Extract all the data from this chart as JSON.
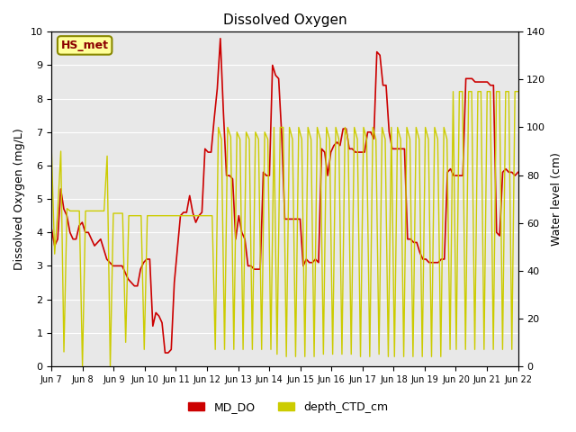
{
  "title": "Dissolved Oxygen",
  "ylabel_left": "Dissolved Oxygen (mg/L)",
  "ylabel_right": "Water level (cm)",
  "ylim_left": [
    0.0,
    10.0
  ],
  "ylim_right": [
    0,
    140
  ],
  "yticks_left": [
    0.0,
    1.0,
    2.0,
    3.0,
    4.0,
    5.0,
    6.0,
    7.0,
    8.0,
    9.0,
    10.0
  ],
  "yticks_right": [
    0,
    20,
    40,
    60,
    80,
    100,
    120,
    140
  ],
  "xlim": [
    0,
    15
  ],
  "xtick_labels": [
    "Jun 7",
    "Jun 8",
    "Jun 9",
    "Jun 10",
    "Jun 11",
    "Jun 12",
    "Jun 13",
    "Jun 14",
    "Jun 15",
    "Jun 16",
    "Jun 17",
    "Jun 18",
    "Jun 19",
    "Jun 20",
    "Jun 21",
    "Jun 22"
  ],
  "xtick_positions": [
    0,
    1,
    2,
    3,
    4,
    5,
    6,
    7,
    8,
    9,
    10,
    11,
    12,
    13,
    14,
    15
  ],
  "legend_labels": [
    "MD_DO",
    "depth_CTD_cm"
  ],
  "legend_colors": [
    "#cc0000",
    "#cccc00"
  ],
  "annotation_text": "HS_met",
  "annotation_color": "#8b0000",
  "annotation_bg": "#ffff99",
  "annotation_border": "#888800",
  "bg_color": "#e8e8e8",
  "grid_color": "#ffffff",
  "line_color_do": "#cc0000",
  "line_color_depth": "#cccc00",
  "md_do": [
    4.1,
    3.6,
    3.8,
    5.3,
    4.7,
    4.5,
    4.0,
    3.8,
    3.8,
    4.2,
    4.3,
    4.0,
    4.0,
    3.8,
    3.6,
    3.7,
    3.8,
    3.5,
    3.2,
    3.1,
    3.0,
    3.0,
    3.0,
    3.0,
    2.8,
    2.6,
    2.5,
    2.4,
    2.4,
    2.9,
    3.1,
    3.2,
    3.2,
    1.2,
    1.6,
    1.5,
    1.3,
    0.4,
    0.4,
    0.5,
    2.5,
    3.5,
    4.5,
    4.6,
    4.6,
    5.1,
    4.6,
    4.3,
    4.5,
    4.6,
    6.5,
    6.4,
    6.4,
    7.4,
    8.3,
    9.8,
    7.6,
    5.7,
    5.7,
    5.6,
    3.8,
    4.5,
    4.0,
    3.8,
    3.0,
    3.0,
    2.9,
    2.9,
    2.9,
    5.8,
    5.7,
    5.7,
    9.0,
    8.7,
    8.6,
    6.9,
    4.4,
    4.4,
    4.4,
    4.4,
    4.4,
    4.4,
    3.0,
    3.2,
    3.1,
    3.1,
    3.2,
    3.1,
    6.5,
    6.4,
    5.7,
    6.4,
    6.6,
    6.7,
    6.6,
    7.1,
    7.1,
    6.5,
    6.5,
    6.4,
    6.4,
    6.4,
    6.4,
    7.0,
    7.0,
    6.8,
    9.4,
    9.3,
    8.4,
    8.4,
    7.0,
    6.5,
    6.5,
    6.5,
    6.5,
    6.5,
    3.8,
    3.8,
    3.7,
    3.7,
    3.4,
    3.2,
    3.2,
    3.1,
    3.1,
    3.1,
    3.1,
    3.2,
    3.2,
    5.8,
    5.9,
    5.7,
    5.7,
    5.7,
    5.7,
    8.6,
    8.6,
    8.6,
    8.5,
    8.5,
    8.5,
    8.5,
    8.5,
    8.4,
    8.4,
    4.0,
    3.9,
    5.8,
    5.9,
    5.8,
    5.8,
    5.7,
    5.8
  ],
  "depth_ctd": [
    90,
    47,
    65,
    90,
    6,
    66,
    65,
    65,
    65,
    65,
    0,
    65,
    65,
    65,
    65,
    65,
    65,
    65,
    88,
    0,
    64,
    64,
    64,
    64,
    10,
    63,
    63,
    63,
    63,
    63,
    7,
    63,
    63,
    63,
    63,
    63,
    63,
    63,
    63,
    63,
    63,
    63,
    63,
    63,
    63,
    63,
    63,
    63,
    63,
    63,
    63,
    63,
    63,
    7,
    100,
    95,
    7,
    100,
    96,
    7,
    98,
    95,
    7,
    98,
    95,
    7,
    98,
    95,
    7,
    98,
    95,
    7,
    100,
    5,
    100,
    100,
    4,
    100,
    95,
    4,
    100,
    95,
    4,
    100,
    95,
    4,
    100,
    95,
    5,
    100,
    95,
    5,
    100,
    95,
    5,
    100,
    95,
    5,
    100,
    95,
    4,
    100,
    95,
    4,
    100,
    95,
    5,
    100,
    95,
    4,
    100,
    4,
    100,
    95,
    4,
    100,
    95,
    4,
    100,
    95,
    4,
    100,
    95,
    4,
    100,
    95,
    4,
    100,
    95,
    7,
    115,
    7,
    115,
    115,
    7,
    115,
    115,
    7,
    115,
    115,
    7,
    115,
    115,
    7,
    115,
    115,
    7,
    115,
    115,
    7,
    115,
    115
  ],
  "figsize": [
    6.4,
    4.8
  ],
  "dpi": 100
}
